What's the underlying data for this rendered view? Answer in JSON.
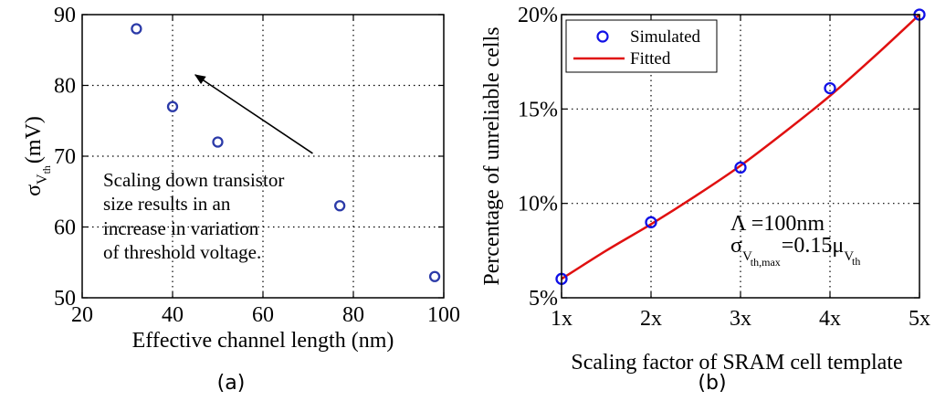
{
  "chart_data": [
    {
      "type": "scatter",
      "panel": "a",
      "caption": "(a)",
      "xlabel": "Effective channel length (nm)",
      "ylabel_sigma": "σ",
      "ylabel_sub_v": "V",
      "ylabel_sub_th": "th",
      "ylabel_units": "(mV)",
      "xlim": [
        20,
        100
      ],
      "ylim": [
        50,
        90
      ],
      "xticks": [
        20,
        40,
        60,
        80,
        100
      ],
      "yticks": [
        50,
        60,
        70,
        80,
        90
      ],
      "grid": true,
      "x": [
        32,
        40,
        50,
        77,
        98
      ],
      "y": [
        88,
        77,
        72,
        63,
        53
      ],
      "marker_color": "#2b3aa8",
      "annotation": {
        "lines": [
          "Scaling down transistor",
          "size results in an",
          "increase in variation",
          "of threshold voltage."
        ],
        "arrow_from": [
          71,
          70.4
        ],
        "arrow_to": [
          45,
          81.5
        ]
      }
    },
    {
      "type": "line",
      "panel": "b",
      "caption": "(b)",
      "xlabel": "Scaling factor of SRAM cell template",
      "ylabel": "Percentage of unreliable cells",
      "categories": [
        "1x",
        "2x",
        "3x",
        "4x",
        "5x"
      ],
      "xlim": [
        1,
        5
      ],
      "ylim": [
        5,
        20
      ],
      "yticks": [
        5,
        10,
        15,
        20
      ],
      "ytick_labels": [
        "5%",
        "10%",
        "15%",
        "20%"
      ],
      "grid": true,
      "series": [
        {
          "name": "Simulated",
          "x": [
            1,
            2,
            3,
            4,
            5
          ],
          "values": [
            6.0,
            9.0,
            11.9,
            16.1,
            20.0
          ],
          "style": "marker",
          "color": "#1010e6"
        },
        {
          "name": "Fitted",
          "x": [
            1,
            1.5,
            2,
            2.5,
            3,
            3.5,
            4,
            4.5,
            5
          ],
          "values": [
            6.0,
            7.5,
            8.9,
            10.4,
            12.0,
            13.8,
            15.7,
            17.8,
            20.0
          ],
          "style": "line",
          "color": "#e01010"
        }
      ],
      "legend_position": "top-left",
      "annotation": {
        "lambda": "Λ =100nm",
        "sigma": "σ",
        "sub_v": "V",
        "sub_thmax": "th,max",
        "eq": "=0.15μ",
        "mu_sub_v": "V",
        "mu_sub_th": "th"
      }
    }
  ]
}
